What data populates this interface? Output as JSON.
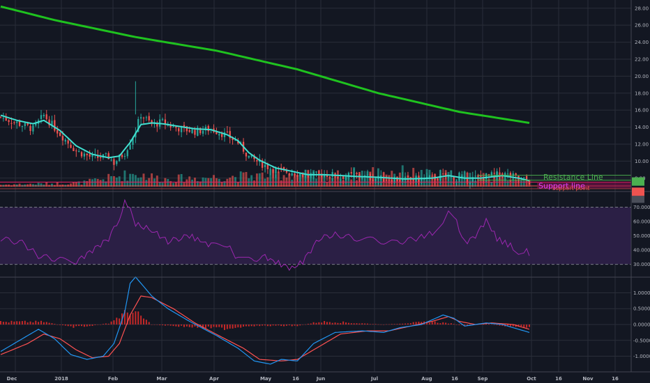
{
  "colors": {
    "background": "#131722",
    "grid": "#2a2e39",
    "candle_up": "#26a69a",
    "candle_down": "#ef5350",
    "ema_fast": "#40e0d0",
    "ma_slow": "#1fc21f",
    "rsi_line": "#9c27b0",
    "rsi_band": "#2b1f45",
    "macd_line": "#2196f3",
    "signal_line": "#ff5252",
    "histogram": "#c62828",
    "resistance": "#4caf50",
    "support": "#e91e63"
  },
  "chart_data": [
    {
      "type": "candlestick",
      "panel": "price",
      "y_ticks": [
        "28.00",
        "26.00",
        "24.00",
        "22.00",
        "20.00",
        "18.00",
        "16.00",
        "14.00",
        "12.00",
        "10.00",
        "8.00"
      ],
      "ylim": [
        7,
        28.8
      ],
      "x_ticks": [
        "Dec",
        "2018",
        "Feb",
        "Mar",
        "Apr",
        "May",
        "16",
        "Jun",
        "Jul",
        "Aug",
        "16",
        "Sep",
        "Oct",
        "16",
        "Nov",
        "16"
      ],
      "price_tags": [
        {
          "label": "",
          "color": "#4caf50",
          "value": 7.6
        },
        {
          "label": "",
          "color": "#ef5350",
          "value": 6.4
        }
      ],
      "close_profile": [
        [
          0,
          15.2
        ],
        [
          6,
          14.5
        ],
        [
          12,
          13.8
        ],
        [
          16,
          15.4
        ],
        [
          22,
          13.2
        ],
        [
          28,
          11.2
        ],
        [
          34,
          10.4
        ],
        [
          40,
          10.5
        ],
        [
          42,
          9.8
        ],
        [
          46,
          11.0
        ],
        [
          50,
          13.6
        ],
        [
          52,
          15.5
        ],
        [
          56,
          14.3
        ],
        [
          60,
          14.6
        ],
        [
          64,
          14.0
        ],
        [
          72,
          13.5
        ],
        [
          78,
          13.8
        ],
        [
          84,
          13.0
        ],
        [
          88,
          12.2
        ],
        [
          92,
          10.5
        ],
        [
          96,
          9.8
        ],
        [
          102,
          8.9
        ],
        [
          108,
          8.7
        ],
        [
          114,
          8.2
        ],
        [
          120,
          8.5
        ],
        [
          126,
          8.2
        ],
        [
          132,
          8.3
        ],
        [
          138,
          8.0
        ],
        [
          150,
          7.8
        ],
        [
          160,
          8.0
        ],
        [
          166,
          8.2
        ],
        [
          172,
          7.8
        ],
        [
          178,
          8.1
        ],
        [
          186,
          8.5
        ],
        [
          192,
          8.0
        ],
        [
          196,
          7.6
        ]
      ],
      "ema_profile": [
        [
          0,
          15.4
        ],
        [
          6,
          14.8
        ],
        [
          12,
          14.4
        ],
        [
          16,
          14.8
        ],
        [
          22,
          13.6
        ],
        [
          28,
          11.8
        ],
        [
          34,
          10.8
        ],
        [
          40,
          10.4
        ],
        [
          44,
          10.6
        ],
        [
          48,
          12.2
        ],
        [
          52,
          14.3
        ],
        [
          56,
          14.5
        ],
        [
          60,
          14.4
        ],
        [
          66,
          14.1
        ],
        [
          72,
          13.8
        ],
        [
          78,
          13.7
        ],
        [
          84,
          13.1
        ],
        [
          88,
          12.4
        ],
        [
          92,
          11.0
        ],
        [
          96,
          10.1
        ],
        [
          102,
          9.2
        ],
        [
          108,
          8.8
        ],
        [
          114,
          8.4
        ],
        [
          120,
          8.4
        ],
        [
          126,
          8.3
        ],
        [
          132,
          8.2
        ],
        [
          140,
          8.1
        ],
        [
          150,
          7.9
        ],
        [
          160,
          8.0
        ],
        [
          166,
          8.3
        ],
        [
          172,
          8.0
        ],
        [
          178,
          8.0
        ],
        [
          186,
          8.3
        ],
        [
          192,
          8.0
        ],
        [
          196,
          7.7
        ]
      ],
      "ma_profile": [
        [
          0,
          28.2
        ],
        [
          20,
          26.6
        ],
        [
          50,
          24.6
        ],
        [
          80,
          23.0
        ],
        [
          110,
          20.8
        ],
        [
          140,
          18.0
        ],
        [
          170,
          15.8
        ],
        [
          196,
          14.5
        ]
      ],
      "volume_profile": [
        [
          0,
          0.1
        ],
        [
          30,
          0.2
        ],
        [
          50,
          0.7
        ],
        [
          60,
          0.4
        ],
        [
          80,
          0.5
        ],
        [
          100,
          0.6
        ],
        [
          110,
          0.7
        ],
        [
          120,
          0.5
        ],
        [
          135,
          0.75
        ],
        [
          145,
          0.8
        ],
        [
          160,
          0.6
        ],
        [
          170,
          0.6
        ],
        [
          185,
          0.5
        ],
        [
          196,
          0.5
        ]
      ],
      "annotations": [
        {
          "label": "Resistance Line",
          "value": 8.0
        },
        {
          "label": "Support line",
          "value": 7.45
        },
        {
          "label": "support point",
          "value": 7.25
        }
      ]
    },
    {
      "type": "line",
      "panel": "rsi",
      "y_ticks": [
        "70.0000",
        "60.0000",
        "50.0000",
        "40.0000",
        "30.0000"
      ],
      "ylim": [
        22,
        80
      ],
      "band": [
        30,
        70
      ],
      "profile": [
        [
          0,
          48
        ],
        [
          8,
          45
        ],
        [
          14,
          36
        ],
        [
          22,
          33
        ],
        [
          28,
          32
        ],
        [
          34,
          40
        ],
        [
          40,
          48
        ],
        [
          44,
          62
        ],
        [
          46,
          75
        ],
        [
          48,
          70
        ],
        [
          50,
          58
        ],
        [
          56,
          54
        ],
        [
          62,
          46
        ],
        [
          70,
          50
        ],
        [
          78,
          43
        ],
        [
          84,
          44
        ],
        [
          88,
          33
        ],
        [
          92,
          33
        ],
        [
          98,
          35
        ],
        [
          104,
          30
        ],
        [
          108,
          27
        ],
        [
          112,
          32
        ],
        [
          118,
          48
        ],
        [
          124,
          51
        ],
        [
          132,
          48
        ],
        [
          138,
          47
        ],
        [
          146,
          45
        ],
        [
          154,
          48
        ],
        [
          160,
          52
        ],
        [
          164,
          60
        ],
        [
          166,
          68
        ],
        [
          168,
          64
        ],
        [
          172,
          45
        ],
        [
          176,
          50
        ],
        [
          180,
          61
        ],
        [
          184,
          48
        ],
        [
          190,
          42
        ],
        [
          192,
          35
        ],
        [
          194,
          40
        ],
        [
          196,
          38
        ]
      ]
    },
    {
      "type": "line",
      "panel": "macd",
      "y_ticks": [
        "1.0000",
        "0.5000",
        "0.0000",
        "-0.5000",
        "-1.0000"
      ],
      "ylim": [
        -1.45,
        1.45
      ],
      "macd_profile": [
        [
          0,
          -0.85
        ],
        [
          8,
          -0.45
        ],
        [
          14,
          -0.15
        ],
        [
          20,
          -0.45
        ],
        [
          26,
          -0.95
        ],
        [
          32,
          -1.1
        ],
        [
          38,
          -1.0
        ],
        [
          42,
          -0.6
        ],
        [
          46,
          0.4
        ],
        [
          48,
          1.3
        ],
        [
          50,
          1.5
        ],
        [
          56,
          0.9
        ],
        [
          62,
          0.5
        ],
        [
          70,
          0.1
        ],
        [
          80,
          -0.35
        ],
        [
          88,
          -0.75
        ],
        [
          94,
          -1.15
        ],
        [
          100,
          -1.25
        ],
        [
          104,
          -1.1
        ],
        [
          110,
          -1.15
        ],
        [
          116,
          -0.6
        ],
        [
          124,
          -0.25
        ],
        [
          134,
          -0.2
        ],
        [
          142,
          -0.25
        ],
        [
          148,
          -0.1
        ],
        [
          156,
          0.0
        ],
        [
          164,
          0.3
        ],
        [
          168,
          0.2
        ],
        [
          172,
          -0.05
        ],
        [
          180,
          0.05
        ],
        [
          186,
          0.0
        ],
        [
          192,
          -0.15
        ],
        [
          196,
          -0.25
        ]
      ],
      "signal_profile": [
        [
          0,
          -0.95
        ],
        [
          10,
          -0.6
        ],
        [
          16,
          -0.3
        ],
        [
          22,
          -0.45
        ],
        [
          28,
          -0.8
        ],
        [
          34,
          -1.05
        ],
        [
          40,
          -1.0
        ],
        [
          44,
          -0.6
        ],
        [
          48,
          0.3
        ],
        [
          52,
          0.9
        ],
        [
          56,
          0.85
        ],
        [
          64,
          0.5
        ],
        [
          72,
          0.05
        ],
        [
          82,
          -0.4
        ],
        [
          90,
          -0.75
        ],
        [
          96,
          -1.1
        ],
        [
          104,
          -1.15
        ],
        [
          110,
          -1.1
        ],
        [
          118,
          -0.7
        ],
        [
          126,
          -0.3
        ],
        [
          136,
          -0.2
        ],
        [
          144,
          -0.2
        ],
        [
          152,
          -0.05
        ],
        [
          160,
          0.1
        ],
        [
          166,
          0.25
        ],
        [
          170,
          0.1
        ],
        [
          176,
          0.0
        ],
        [
          182,
          0.05
        ],
        [
          190,
          0.0
        ],
        [
          196,
          -0.15
        ]
      ],
      "hist_profile": [
        [
          0,
          0.1
        ],
        [
          10,
          0.1
        ],
        [
          16,
          0.1
        ],
        [
          26,
          -0.1
        ],
        [
          34,
          -0.05
        ],
        [
          40,
          0.05
        ],
        [
          44,
          0.3
        ],
        [
          48,
          0.5
        ],
        [
          52,
          0.3
        ],
        [
          56,
          0.0
        ],
        [
          64,
          -0.05
        ],
        [
          72,
          -0.1
        ],
        [
          84,
          -0.15
        ],
        [
          92,
          -0.05
        ],
        [
          100,
          -0.05
        ],
        [
          110,
          -0.05
        ],
        [
          118,
          0.1
        ],
        [
          124,
          0.1
        ],
        [
          132,
          0.05
        ],
        [
          142,
          0.0
        ],
        [
          150,
          0.05
        ],
        [
          160,
          0.1
        ],
        [
          166,
          0.05
        ],
        [
          172,
          -0.05
        ],
        [
          180,
          0.05
        ],
        [
          186,
          -0.05
        ],
        [
          192,
          -0.1
        ],
        [
          196,
          -0.1
        ]
      ]
    }
  ]
}
